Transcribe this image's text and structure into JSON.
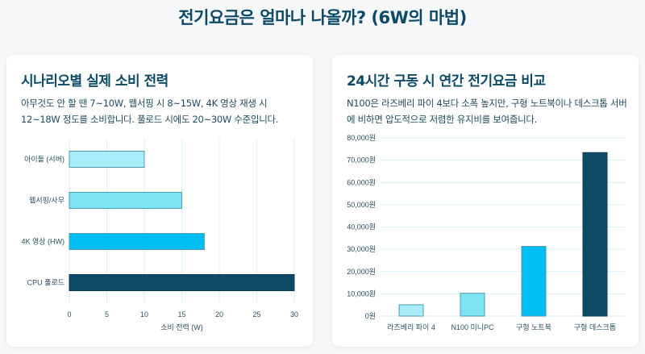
{
  "page_title": "전기요금은 얼마나 나올까? (6W의 마법)",
  "cards": [
    {
      "title": "시나리오별 실제 소비 전력",
      "description": "아무것도 안 할 땐 7~10W, 웹서핑 시 8~15W, 4K 영상 재생 시 12~18W 정도를 소비합니다. 풀로드 시에도 20~30W 수준입니다."
    },
    {
      "title": "24시간 구동 시 연간 전기요금 비교",
      "description": "N100은 라즈베리 파이 4보다 소폭 높지만, 구형 노트북이나 데스크톱 서버에 비하면 압도적으로 저렴한 유지비를 보여줍니다."
    }
  ],
  "chart_data": [
    {
      "type": "bar",
      "orientation": "horizontal",
      "categories": [
        "아이들 (서버)",
        "웹서핑/사무",
        "4K 영상 (HW)",
        "CPU 풀로드"
      ],
      "values": [
        10,
        15,
        18,
        30
      ],
      "colors": [
        "#a8ecf7",
        "#7ee3f5",
        "#00bdf2",
        "#0c4a68"
      ],
      "xlabel": "소비 전력 (W)",
      "xlim": [
        0,
        30
      ],
      "xticks": [
        "0",
        "5",
        "10",
        "15",
        "20",
        "25",
        "30"
      ],
      "grid": true
    },
    {
      "type": "bar",
      "categories": [
        "라즈베리 파이 4",
        "N100 미니PC",
        "구형 노트북",
        "구형 데스크톱"
      ],
      "values": [
        5100,
        10250,
        31300,
        73400
      ],
      "colors": [
        "#a8ecf7",
        "#7ee3f5",
        "#00bdf2",
        "#0c4a68"
      ],
      "ylim": [
        0,
        80000
      ],
      "yticks": [
        "0원",
        "10,000원",
        "20,000원",
        "30,000원",
        "40,000원",
        "50,000원",
        "60,000원",
        "70,000원",
        "80,000원"
      ],
      "grid": true
    }
  ]
}
